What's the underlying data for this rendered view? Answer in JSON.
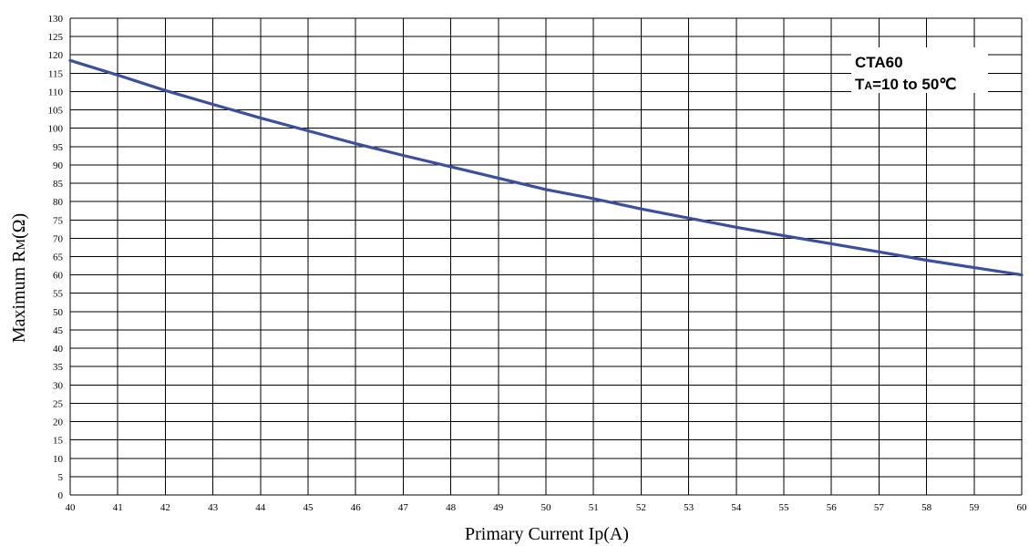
{
  "chart_data": {
    "type": "line",
    "title": "",
    "xlabel": "Primary Current Ip(A)",
    "ylabel": {
      "prefix": "Maximum R",
      "subscript": "M",
      "suffix": "(Ω)"
    },
    "xlim": [
      40,
      60
    ],
    "ylim": [
      0,
      130
    ],
    "x_ticks": [
      40,
      41,
      42,
      43,
      44,
      45,
      46,
      47,
      48,
      49,
      50,
      51,
      52,
      53,
      54,
      55,
      56,
      57,
      58,
      59,
      60
    ],
    "y_ticks": [
      0,
      5,
      10,
      15,
      20,
      25,
      30,
      35,
      40,
      45,
      50,
      55,
      60,
      65,
      70,
      75,
      80,
      85,
      90,
      95,
      100,
      105,
      110,
      115,
      120,
      125,
      130
    ],
    "grid": true,
    "series": [
      {
        "color": "#3a4f9e",
        "x": [
          40,
          41,
          42,
          43,
          44,
          45,
          46,
          47,
          48,
          49,
          50,
          51,
          52,
          53,
          54,
          55,
          56,
          57,
          58,
          59,
          60
        ],
        "y": [
          118.5,
          114.5,
          110.3,
          106.5,
          102.8,
          99.3,
          95.8,
          92.6,
          89.5,
          86.4,
          83.3,
          80.8,
          78.0,
          75.5,
          73.0,
          70.7,
          68.5,
          66.3,
          64.0,
          62.0,
          60.0
        ]
      }
    ],
    "annotation": {
      "line1": "CTA60",
      "line2_main": "T",
      "line2_sub": "A",
      "line2_rest": "=10 to 50℃",
      "position": "top-right"
    }
  }
}
